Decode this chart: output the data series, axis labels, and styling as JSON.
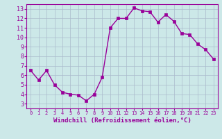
{
  "x": [
    0,
    1,
    2,
    3,
    4,
    5,
    6,
    7,
    8,
    9,
    10,
    11,
    12,
    13,
    14,
    15,
    16,
    17,
    18,
    19,
    20,
    21,
    22,
    23
  ],
  "y": [
    6.5,
    5.5,
    6.5,
    5.0,
    4.2,
    4.0,
    3.9,
    3.3,
    4.0,
    5.8,
    11.0,
    12.0,
    12.0,
    13.1,
    12.8,
    12.7,
    11.6,
    12.4,
    11.7,
    10.4,
    10.3,
    9.3,
    8.7,
    7.7
  ],
  "line_color": "#990099",
  "marker": "s",
  "markersize": 2.5,
  "linewidth": 1.0,
  "bg_color": "#cce8e8",
  "grid_color": "#aabbcc",
  "xlabel": "Windchill (Refroidissement éolien,°C)",
  "xlabel_color": "#990099",
  "xlim": [
    -0.5,
    23.5
  ],
  "ylim": [
    2.5,
    13.5
  ],
  "yticks": [
    3,
    4,
    5,
    6,
    7,
    8,
    9,
    10,
    11,
    12,
    13
  ],
  "xticks": [
    0,
    1,
    2,
    3,
    4,
    5,
    6,
    7,
    8,
    9,
    10,
    11,
    12,
    13,
    14,
    15,
    16,
    17,
    18,
    19,
    20,
    21,
    22,
    23
  ],
  "tick_color": "#990099",
  "spine_color": "#990099",
  "axis_bg": "#cce8e8",
  "xtick_fontsize": 5.0,
  "ytick_fontsize": 6.0,
  "xlabel_fontsize": 6.5
}
